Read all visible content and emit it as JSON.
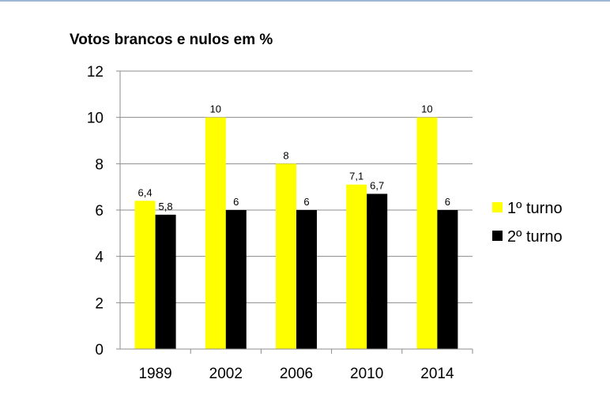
{
  "chart_data": {
    "type": "bar",
    "title": "Votos brancos e nulos em %",
    "xlabel": "",
    "ylabel": "",
    "categories": [
      "1989",
      "2002",
      "2006",
      "2010",
      "2014"
    ],
    "series": [
      {
        "name": "1º turno",
        "color": "#ffff00",
        "values": [
          6.4,
          10,
          8,
          7.1,
          10
        ],
        "labels": [
          "6,4",
          "10",
          "8",
          "7,1",
          "10"
        ]
      },
      {
        "name": "2º turno",
        "color": "#000000",
        "values": [
          5.8,
          6,
          6,
          6.7,
          6
        ],
        "labels": [
          "5,8",
          "6",
          "6",
          "6,7",
          "6"
        ]
      }
    ],
    "ylim": [
      0,
      12
    ],
    "yticks": [
      "0",
      "2",
      "4",
      "6",
      "8",
      "10",
      "12"
    ],
    "grid": true,
    "legend": "right"
  }
}
